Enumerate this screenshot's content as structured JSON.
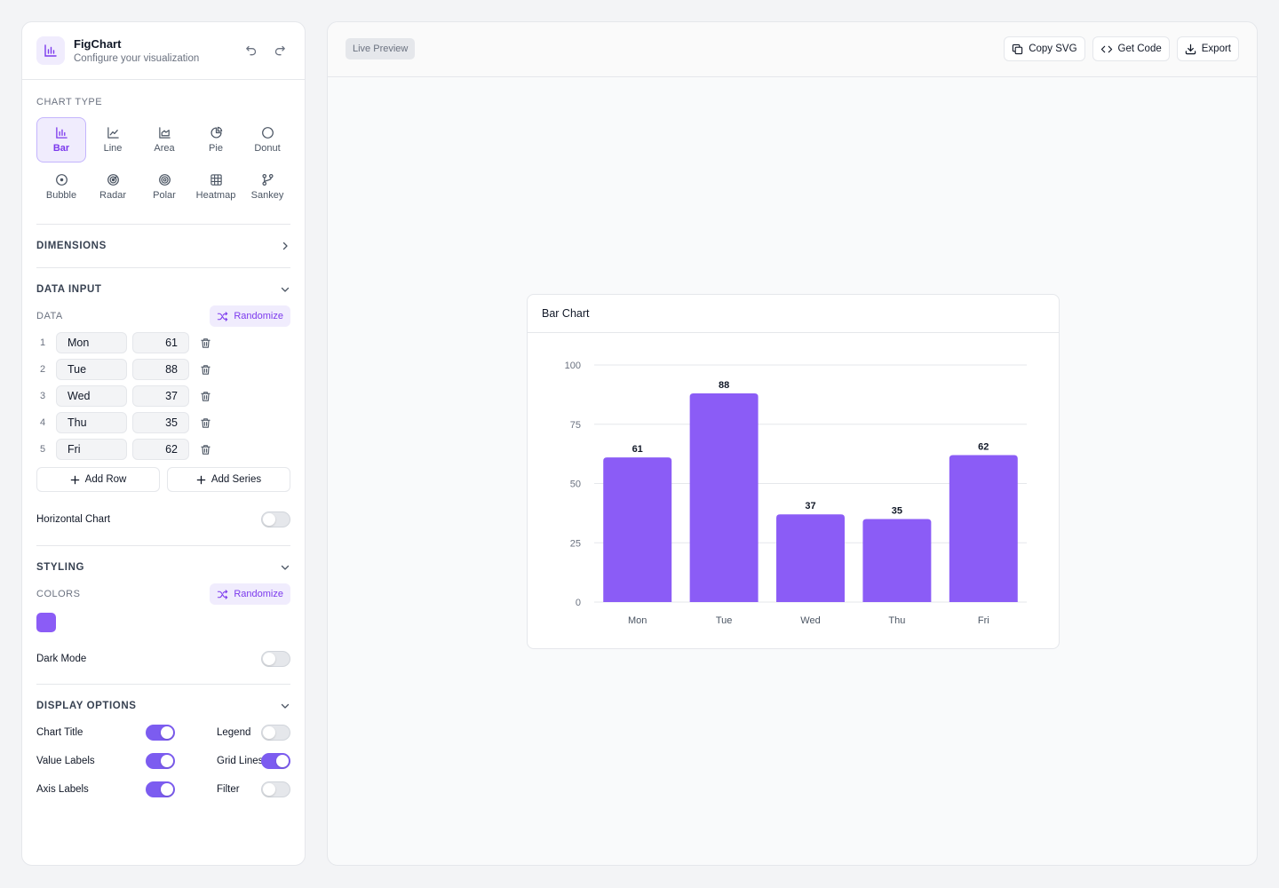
{
  "app": {
    "title": "FigChart",
    "subtitle": "Configure your visualization"
  },
  "sidebar": {
    "chart_type_label": "CHART TYPE",
    "chart_types": [
      {
        "label": "Bar",
        "icon": "bar-chart-icon",
        "active": true
      },
      {
        "label": "Line",
        "icon": "line-chart-icon"
      },
      {
        "label": "Area",
        "icon": "area-chart-icon"
      },
      {
        "label": "Pie",
        "icon": "pie-chart-icon"
      },
      {
        "label": "Donut",
        "icon": "donut-chart-icon"
      },
      {
        "label": "Bubble",
        "icon": "bubble-chart-icon"
      },
      {
        "label": "Radar",
        "icon": "radar-chart-icon"
      },
      {
        "label": "Polar",
        "icon": "polar-chart-icon"
      },
      {
        "label": "Heatmap",
        "icon": "heatmap-icon"
      },
      {
        "label": "Sankey",
        "icon": "sankey-icon"
      }
    ],
    "dimensions_title": "DIMENSIONS",
    "data_input": {
      "title": "DATA INPUT",
      "data_label": "DATA",
      "randomize_label": "Randomize",
      "rows": [
        {
          "num": "1",
          "label": "Mon",
          "value": "61"
        },
        {
          "num": "2",
          "label": "Tue",
          "value": "88"
        },
        {
          "num": "3",
          "label": "Wed",
          "value": "37"
        },
        {
          "num": "4",
          "label": "Thu",
          "value": "35"
        },
        {
          "num": "5",
          "label": "Fri",
          "value": "62"
        }
      ],
      "add_row_label": "Add Row",
      "add_series_label": "Add Series",
      "horizontal_label": "Horizontal Chart",
      "horizontal_on": false
    },
    "styling": {
      "title": "STYLING",
      "colors_label": "COLORS",
      "randomize_label": "Randomize",
      "swatch_color": "#8b5cf6",
      "dark_mode_label": "Dark Mode",
      "dark_mode_on": false
    },
    "display_options": {
      "title": "DISPLAY OPTIONS",
      "options": [
        {
          "label": "Chart Title",
          "on": true
        },
        {
          "label": "Legend",
          "on": false
        },
        {
          "label": "Value Labels",
          "on": true
        },
        {
          "label": "Grid Lines",
          "on": true
        },
        {
          "label": "Axis Labels",
          "on": true
        },
        {
          "label": "Filter",
          "on": false
        }
      ]
    }
  },
  "preview": {
    "badge": "Live Preview",
    "toolbar": {
      "copy_svg": "Copy SVG",
      "get_code": "Get Code",
      "export": "Export"
    }
  },
  "colors": {
    "accent": "#7c5cf0",
    "bar": "#8b5cf6"
  },
  "chart_data": {
    "type": "bar",
    "title": "Bar Chart",
    "categories": [
      "Mon",
      "Tue",
      "Wed",
      "Thu",
      "Fri"
    ],
    "values": [
      61,
      88,
      37,
      35,
      62
    ],
    "ylim": [
      0,
      100
    ],
    "yticks": [
      0,
      25,
      50,
      75,
      100
    ],
    "grid": true,
    "value_labels": true
  }
}
